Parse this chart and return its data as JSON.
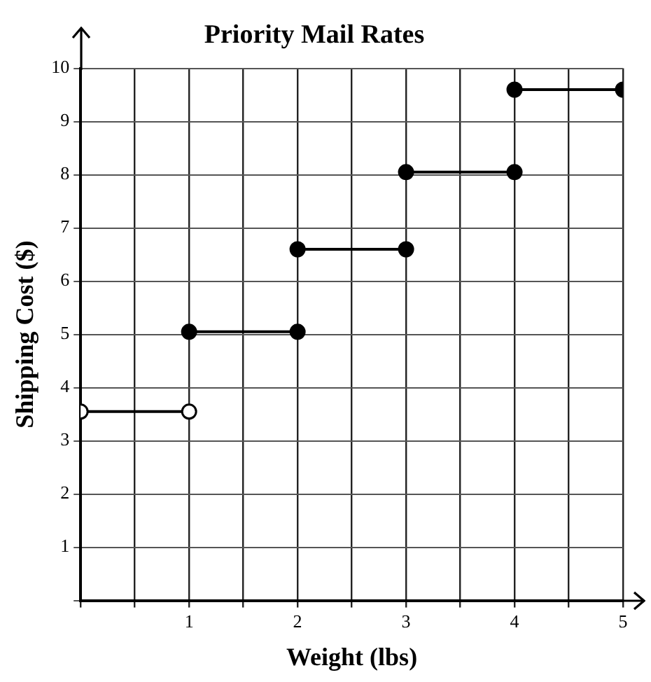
{
  "chart_data": {
    "type": "line",
    "title": "Priority Mail Rates",
    "xlabel": "Weight (lbs)",
    "ylabel": "Shipping Cost ($)",
    "xlim": [
      0,
      5
    ],
    "ylim": [
      0,
      10
    ],
    "xticks": [
      {
        "value": 0,
        "label": null
      },
      {
        "value": 0.5,
        "label": null
      },
      1,
      {
        "value": 1.5,
        "label": null
      },
      2,
      {
        "value": 2.5,
        "label": null
      },
      3,
      {
        "value": 3.5,
        "label": null
      },
      4,
      {
        "value": 4.5,
        "label": null
      },
      5
    ],
    "yticks": [
      {
        "value": 0,
        "label": null
      },
      1,
      2,
      3,
      4,
      5,
      6,
      7,
      8,
      9,
      10
    ],
    "grid": true,
    "marker": "circle",
    "line_style": "solid",
    "legend": false,
    "series": [
      {
        "color": "#000000",
        "colors": [
          "#ffffff",
          "#ffffff"
        ],
        "x": [
          0,
          1
        ],
        "values": [
          3.55,
          3.55
        ]
      },
      {
        "color": "#000000",
        "x": [
          1,
          2
        ],
        "values": [
          5.05,
          5.05
        ]
      },
      {
        "color": "#000000",
        "x": [
          2,
          3
        ],
        "values": [
          6.6,
          6.6
        ]
      },
      {
        "color": "#000000",
        "x": [
          3,
          4
        ],
        "values": [
          8.05,
          8.05
        ]
      },
      {
        "color": "#000000",
        "x": [
          4,
          5
        ],
        "values": [
          9.6,
          9.6
        ]
      }
    ]
  }
}
